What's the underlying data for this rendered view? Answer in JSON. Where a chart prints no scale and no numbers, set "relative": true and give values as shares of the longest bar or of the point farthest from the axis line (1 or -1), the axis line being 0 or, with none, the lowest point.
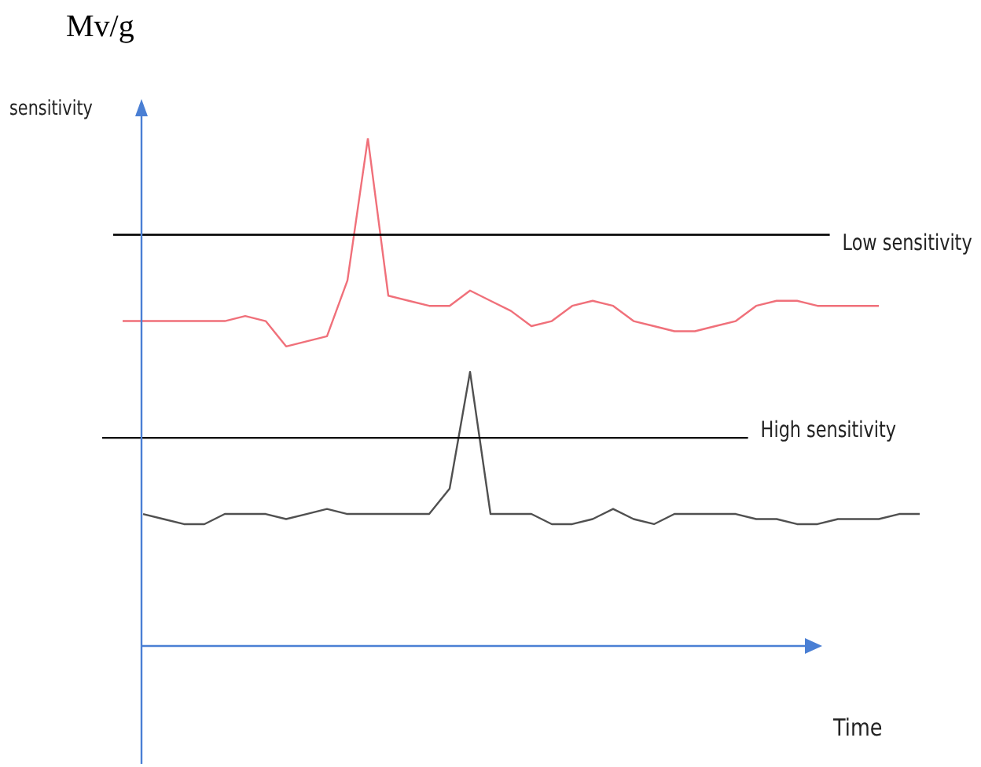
{
  "chart_data": {
    "type": "line",
    "title": "Mv/g",
    "xlabel": "Time",
    "ylabel": "sensitivity",
    "relative": true,
    "marker": "none",
    "categories": [
      null,
      null,
      null,
      null,
      null,
      null,
      null,
      null,
      null,
      null,
      null,
      null,
      null,
      null,
      null,
      null,
      null,
      null,
      null,
      null,
      null,
      null,
      null,
      null,
      null,
      null,
      null,
      null,
      null,
      null,
      null,
      null,
      null,
      null,
      null,
      null,
      null,
      null,
      null,
      null,
      null
    ],
    "series": [
      {
        "color": "#f0707a",
        "values": [
          null,
          0.64,
          0.64,
          0.64,
          0.64,
          0.64,
          0.64,
          0.65,
          0.64,
          0.59,
          0.6,
          0.61,
          0.72,
          1,
          0.69,
          0.68,
          0.67,
          0.67,
          0.7,
          0.68,
          0.66,
          0.63,
          0.64,
          0.67,
          0.68,
          0.67,
          0.64,
          0.63,
          0.62,
          0.62,
          0.63,
          0.64,
          0.67,
          0.68,
          0.68,
          0.67,
          0.67,
          0.67,
          0.67,
          null,
          null
        ]
      },
      {
        "color": "#505050",
        "values": [
          null,
          null,
          0.26,
          0.25,
          0.24,
          0.24,
          0.26,
          0.26,
          0.26,
          0.25,
          0.26,
          0.27,
          0.26,
          0.26,
          0.26,
          0.26,
          0.26,
          0.31,
          0.54,
          0.26,
          0.26,
          0.26,
          0.24,
          0.24,
          0.25,
          0.27,
          0.25,
          0.24,
          0.26,
          0.26,
          0.26,
          0.26,
          0.25,
          0.25,
          0.24,
          0.24,
          0.25,
          0.25,
          0.25,
          0.26,
          0.26
        ]
      }
    ],
    "ref_lines": [
      {
        "axis": "y",
        "value": 0.81,
        "label": "Low sensitivity",
        "color": "#000000"
      },
      {
        "axis": "y",
        "value": 0.41,
        "label": "High sensitivity",
        "color": "#000000"
      }
    ]
  }
}
